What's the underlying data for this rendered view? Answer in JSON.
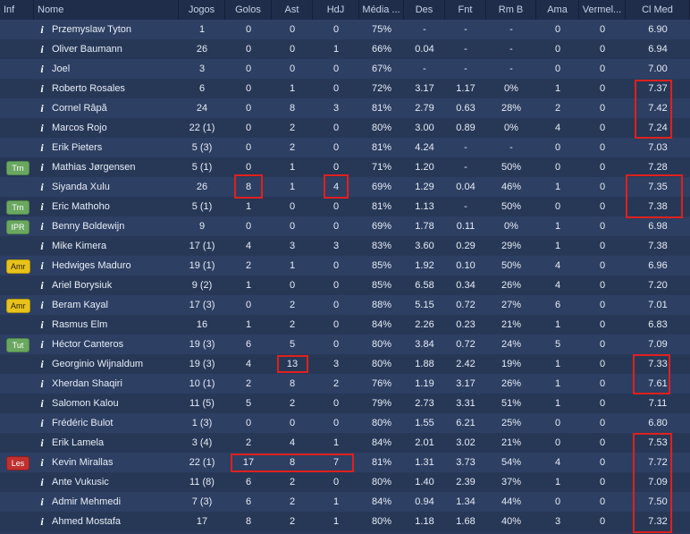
{
  "columns": [
    "Inf",
    "Nome",
    "Jogos",
    "Golos",
    "Ast",
    "HdJ",
    "Média ...",
    "Des",
    "Fnt",
    "Rm B",
    "Ama",
    "Vermel...",
    "Cl Med"
  ],
  "players": [
    {
      "inf": "",
      "nome": "Przemyslaw Tyton",
      "jogos": "1",
      "golos": "0",
      "ast": "0",
      "hdj": "0",
      "media": "75%",
      "des": "-",
      "fnt": "-",
      "rmb": "-",
      "ama": "0",
      "vermel": "0",
      "clmed": "6.90"
    },
    {
      "inf": "",
      "nome": "Oliver Baumann",
      "jogos": "26",
      "golos": "0",
      "ast": "0",
      "hdj": "1",
      "media": "66%",
      "des": "0.04",
      "fnt": "-",
      "rmb": "-",
      "ama": "0",
      "vermel": "0",
      "clmed": "6.94"
    },
    {
      "inf": "",
      "nome": "Joel",
      "jogos": "3",
      "golos": "0",
      "ast": "0",
      "hdj": "0",
      "media": "67%",
      "des": "-",
      "fnt": "-",
      "rmb": "-",
      "ama": "0",
      "vermel": "0",
      "clmed": "7.00"
    },
    {
      "inf": "",
      "nome": "Roberto Rosales",
      "jogos": "6",
      "golos": "0",
      "ast": "1",
      "hdj": "0",
      "media": "72%",
      "des": "3.17",
      "fnt": "1.17",
      "rmb": "0%",
      "ama": "1",
      "vermel": "0",
      "clmed": "7.37"
    },
    {
      "inf": "",
      "nome": "Cornel Râpă",
      "jogos": "24",
      "golos": "0",
      "ast": "8",
      "hdj": "3",
      "media": "81%",
      "des": "2.79",
      "fnt": "0.63",
      "rmb": "28%",
      "ama": "2",
      "vermel": "0",
      "clmed": "7.42"
    },
    {
      "inf": "",
      "nome": "Marcos Rojo",
      "jogos": "22 (1)",
      "golos": "0",
      "ast": "2",
      "hdj": "0",
      "media": "80%",
      "des": "3.00",
      "fnt": "0.89",
      "rmb": "0%",
      "ama": "4",
      "vermel": "0",
      "clmed": "7.24"
    },
    {
      "inf": "",
      "nome": "Erik Pieters",
      "jogos": "5 (3)",
      "golos": "0",
      "ast": "2",
      "hdj": "0",
      "media": "81%",
      "des": "4.24",
      "fnt": "-",
      "rmb": "-",
      "ama": "0",
      "vermel": "0",
      "clmed": "7.03"
    },
    {
      "inf": "Trn",
      "nome": "Mathias Jørgensen",
      "jogos": "5 (1)",
      "golos": "0",
      "ast": "1",
      "hdj": "0",
      "media": "71%",
      "des": "1.20",
      "fnt": "-",
      "rmb": "50%",
      "ama": "0",
      "vermel": "0",
      "clmed": "7.28"
    },
    {
      "inf": "",
      "nome": "Siyanda Xulu",
      "jogos": "26",
      "golos": "8",
      "ast": "1",
      "hdj": "4",
      "media": "69%",
      "des": "1.29",
      "fnt": "0.04",
      "rmb": "46%",
      "ama": "1",
      "vermel": "0",
      "clmed": "7.35"
    },
    {
      "inf": "Trn",
      "nome": "Eric Mathoho",
      "jogos": "5 (1)",
      "golos": "1",
      "ast": "0",
      "hdj": "0",
      "media": "81%",
      "des": "1.13",
      "fnt": "-",
      "rmb": "50%",
      "ama": "0",
      "vermel": "0",
      "clmed": "7.38"
    },
    {
      "inf": "IPR",
      "nome": "Benny Boldewijn",
      "jogos": "9",
      "golos": "0",
      "ast": "0",
      "hdj": "0",
      "media": "69%",
      "des": "1.78",
      "fnt": "0.11",
      "rmb": "0%",
      "ama": "1",
      "vermel": "0",
      "clmed": "6.98"
    },
    {
      "inf": "",
      "nome": "Mike Kimera",
      "jogos": "17 (1)",
      "golos": "4",
      "ast": "3",
      "hdj": "3",
      "media": "83%",
      "des": "3.60",
      "fnt": "0.29",
      "rmb": "29%",
      "ama": "1",
      "vermel": "0",
      "clmed": "7.38"
    },
    {
      "inf": "Amr",
      "nome": "Hedwiges Maduro",
      "jogos": "19 (1)",
      "golos": "2",
      "ast": "1",
      "hdj": "0",
      "media": "85%",
      "des": "1.92",
      "fnt": "0.10",
      "rmb": "50%",
      "ama": "4",
      "vermel": "0",
      "clmed": "6.96"
    },
    {
      "inf": "",
      "nome": "Ariel Borysiuk",
      "jogos": "9 (2)",
      "golos": "1",
      "ast": "0",
      "hdj": "0",
      "media": "85%",
      "des": "6.58",
      "fnt": "0.34",
      "rmb": "26%",
      "ama": "4",
      "vermel": "0",
      "clmed": "7.20"
    },
    {
      "inf": "Amr",
      "nome": "Beram Kayal",
      "jogos": "17 (3)",
      "golos": "0",
      "ast": "2",
      "hdj": "0",
      "media": "88%",
      "des": "5.15",
      "fnt": "0.72",
      "rmb": "27%",
      "ama": "6",
      "vermel": "0",
      "clmed": "7.01"
    },
    {
      "inf": "",
      "nome": "Rasmus Elm",
      "jogos": "16",
      "golos": "1",
      "ast": "2",
      "hdj": "0",
      "media": "84%",
      "des": "2.26",
      "fnt": "0.23",
      "rmb": "21%",
      "ama": "1",
      "vermel": "0",
      "clmed": "6.83"
    },
    {
      "inf": "Tut",
      "nome": "Héctor Canteros",
      "jogos": "19 (3)",
      "golos": "6",
      "ast": "5",
      "hdj": "0",
      "media": "80%",
      "des": "3.84",
      "fnt": "0.72",
      "rmb": "24%",
      "ama": "5",
      "vermel": "0",
      "clmed": "7.09"
    },
    {
      "inf": "",
      "nome": "Georginio Wijnaldum",
      "jogos": "19 (3)",
      "golos": "4",
      "ast": "13",
      "hdj": "3",
      "media": "80%",
      "des": "1.88",
      "fnt": "2.42",
      "rmb": "19%",
      "ama": "1",
      "vermel": "0",
      "clmed": "7.33"
    },
    {
      "inf": "",
      "nome": "Xherdan Shaqiri",
      "jogos": "10 (1)",
      "golos": "2",
      "ast": "8",
      "hdj": "2",
      "media": "76%",
      "des": "1.19",
      "fnt": "3.17",
      "rmb": "26%",
      "ama": "1",
      "vermel": "0",
      "clmed": "7.61"
    },
    {
      "inf": "",
      "nome": "Salomon Kalou",
      "jogos": "11 (5)",
      "golos": "5",
      "ast": "2",
      "hdj": "0",
      "media": "79%",
      "des": "2.73",
      "fnt": "3.31",
      "rmb": "51%",
      "ama": "1",
      "vermel": "0",
      "clmed": "7.11"
    },
    {
      "inf": "",
      "nome": "Frédéric Bulot",
      "jogos": "1 (3)",
      "golos": "0",
      "ast": "0",
      "hdj": "0",
      "media": "80%",
      "des": "1.55",
      "fnt": "6.21",
      "rmb": "25%",
      "ama": "0",
      "vermel": "0",
      "clmed": "6.80"
    },
    {
      "inf": "",
      "nome": "Erik Lamela",
      "jogos": "3 (4)",
      "golos": "2",
      "ast": "4",
      "hdj": "1",
      "media": "84%",
      "des": "2.01",
      "fnt": "3.02",
      "rmb": "21%",
      "ama": "0",
      "vermel": "0",
      "clmed": "7.53"
    },
    {
      "inf": "Les",
      "nome": "Kevin Mirallas",
      "jogos": "22 (1)",
      "golos": "17",
      "ast": "8",
      "hdj": "7",
      "media": "81%",
      "des": "1.31",
      "fnt": "3.73",
      "rmb": "54%",
      "ama": "4",
      "vermel": "0",
      "clmed": "7.72"
    },
    {
      "inf": "",
      "nome": "Ante Vukusic",
      "jogos": "11 (8)",
      "golos": "6",
      "ast": "2",
      "hdj": "0",
      "media": "80%",
      "des": "1.40",
      "fnt": "2.39",
      "rmb": "37%",
      "ama": "1",
      "vermel": "0",
      "clmed": "7.09"
    },
    {
      "inf": "",
      "nome": "Admir Mehmedi",
      "jogos": "7 (3)",
      "golos": "6",
      "ast": "2",
      "hdj": "1",
      "media": "84%",
      "des": "0.94",
      "fnt": "1.34",
      "rmb": "44%",
      "ama": "0",
      "vermel": "0",
      "clmed": "7.50"
    },
    {
      "inf": "",
      "nome": "Ahmed Mostafa",
      "jogos": "17",
      "golos": "8",
      "ast": "2",
      "hdj": "1",
      "media": "80%",
      "des": "1.18",
      "fnt": "1.68",
      "rmb": "40%",
      "ama": "3",
      "vermel": "0",
      "clmed": "7.32"
    }
  ],
  "colors": {
    "header_bg": "#1f2d4b",
    "row_odd": "#2d3f63",
    "row_even": "#273857",
    "highlight_red": "#e0201c",
    "badge_green": "#6aa760",
    "badge_yellow": "#e8c21a",
    "badge_red": "#c03030"
  },
  "icons": {
    "info": "info-icon",
    "info_glyph": "i"
  }
}
